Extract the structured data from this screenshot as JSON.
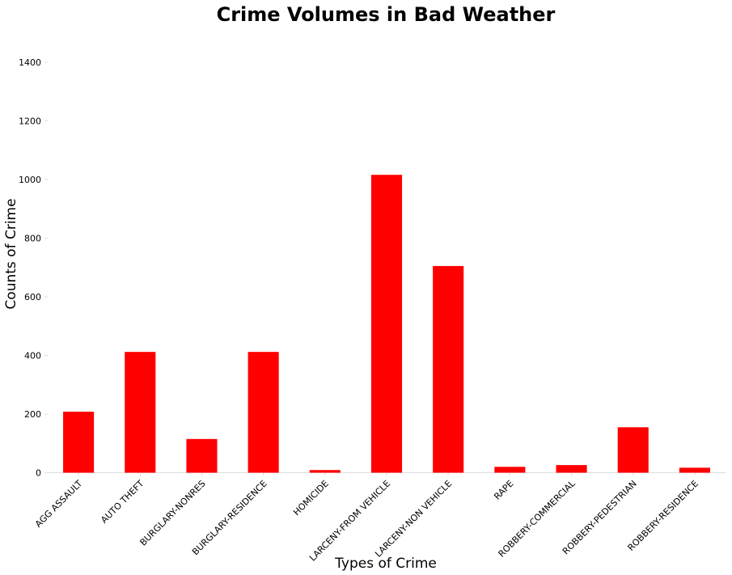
{
  "chart_data": {
    "type": "bar",
    "title": "Crime Volumes in Bad Weather",
    "xlabel": "Types of Crime",
    "ylabel": "Counts of Crime",
    "categories": [
      "AGG ASSAULT",
      "AUTO THEFT",
      "BURGLARY-NONRES",
      "BURGLARY-RESIDENCE",
      "HOMICIDE",
      "LARCENY-FROM VEHICLE",
      "LARCENY-NON VEHICLE",
      "RAPE",
      "ROBBERY-COMMERCIAL",
      "ROBBERY-PEDESTRIAN",
      "ROBBERY-RESIDENCE"
    ],
    "values": [
      208,
      412,
      115,
      412,
      9,
      1016,
      705,
      20,
      26,
      155,
      17
    ],
    "ylim": [
      0,
      1400
    ],
    "yticks": [
      0,
      200,
      400,
      600,
      800,
      1000,
      1200,
      1400
    ],
    "grid": false,
    "bar_color": "#ff0000"
  }
}
